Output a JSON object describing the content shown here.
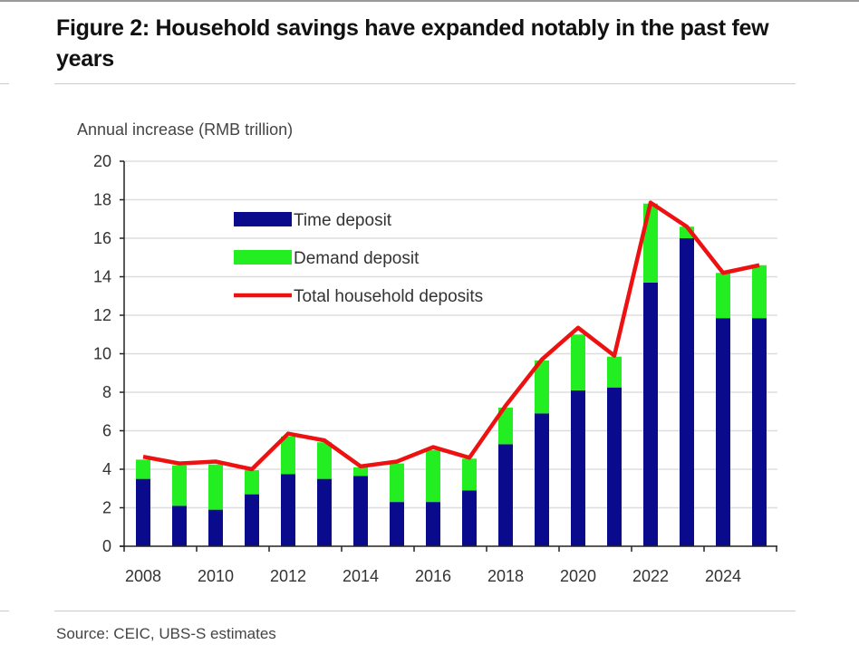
{
  "title": "Figure 2: Household savings have expanded notably in the past few years",
  "source": "Source: CEIC, UBS-S estimates",
  "chart_data": {
    "type": "bar",
    "subtype": "stacked bar with line",
    "ylabel": "Annual increase (RMB trillion)",
    "ylim": [
      0,
      20
    ],
    "yticks": [
      0,
      2,
      4,
      6,
      8,
      10,
      12,
      14,
      16,
      18,
      20
    ],
    "xtick_labels": [
      "2008",
      "2010",
      "2012",
      "2014",
      "2016",
      "2018",
      "2020",
      "2022",
      "2024"
    ],
    "categories": [
      2008,
      2009,
      2010,
      2011,
      2012,
      2013,
      2014,
      2015,
      2016,
      2017,
      2018,
      2019,
      2020,
      2021,
      2022,
      2023,
      2024,
      2025
    ],
    "grid": true,
    "legend_placement": "top-left",
    "series": [
      {
        "name": "Time deposit",
        "kind": "bar",
        "color": "#0a0a8c",
        "values": [
          3.5,
          2.1,
          1.9,
          2.7,
          3.75,
          3.5,
          3.65,
          2.3,
          2.3,
          2.9,
          5.3,
          6.9,
          8.1,
          8.25,
          13.7,
          16.0,
          11.85,
          11.85
        ]
      },
      {
        "name": "Demand deposit",
        "kind": "bar",
        "color": "#22ee22",
        "values": [
          1.0,
          2.1,
          2.35,
          1.25,
          1.95,
          1.9,
          0.45,
          2.0,
          2.7,
          1.65,
          1.9,
          2.75,
          2.9,
          1.6,
          4.1,
          0.6,
          2.35,
          2.75
        ]
      },
      {
        "name": "Total household deposits",
        "kind": "line",
        "color": "#ee1111",
        "values": [
          4.65,
          4.3,
          4.4,
          4.0,
          5.85,
          5.5,
          4.15,
          4.4,
          5.15,
          4.6,
          7.3,
          9.7,
          11.35,
          9.9,
          17.85,
          16.6,
          14.2,
          14.6
        ]
      }
    ]
  }
}
